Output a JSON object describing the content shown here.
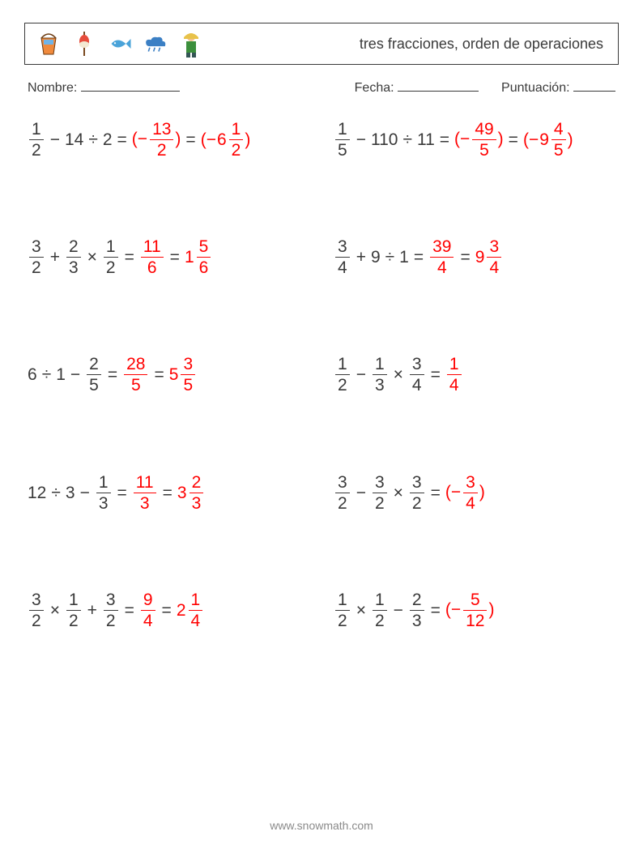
{
  "colors": {
    "text": "#3a3a3a",
    "answer": "#ff0000",
    "border": "#3a3a3a",
    "footer": "#8a8a8a",
    "background": "#ffffff"
  },
  "header": {
    "title": "tres fracciones, orden de operaciones",
    "icons": [
      "bucket-icon",
      "float-icon",
      "fish-icon",
      "cloud-icon",
      "fisherman-icon"
    ]
  },
  "meta": {
    "name_label": "Nombre:",
    "date_label": "Fecha:",
    "score_label": "Puntuación:",
    "name_underline_width": 122,
    "date_underline_width": 100,
    "score_underline_width": 52
  },
  "glyphs": {
    "minus": "−",
    "plus": "+",
    "times": "×",
    "divide": "÷",
    "equals": "="
  },
  "problems": [
    {
      "lhs": [
        {
          "frac": [
            "1",
            "2"
          ]
        },
        {
          "op": "minus"
        },
        {
          "int": "14"
        },
        {
          "op": "divide"
        },
        {
          "int": "2"
        }
      ],
      "answers": [
        {
          "paren": true,
          "neg": true,
          "frac": [
            "13",
            "2"
          ]
        },
        {
          "paren": true,
          "neg": true,
          "mixed": [
            "6",
            "1",
            "2"
          ]
        }
      ]
    },
    {
      "lhs": [
        {
          "frac": [
            "1",
            "5"
          ]
        },
        {
          "op": "minus"
        },
        {
          "int": "110"
        },
        {
          "op": "divide"
        },
        {
          "int": "11"
        }
      ],
      "answers": [
        {
          "paren": true,
          "neg": true,
          "frac": [
            "49",
            "5"
          ]
        },
        {
          "paren": true,
          "neg": true,
          "mixed": [
            "9",
            "4",
            "5"
          ]
        }
      ]
    },
    {
      "lhs": [
        {
          "frac": [
            "3",
            "2"
          ]
        },
        {
          "op": "plus"
        },
        {
          "frac": [
            "2",
            "3"
          ]
        },
        {
          "op": "times"
        },
        {
          "frac": [
            "1",
            "2"
          ]
        }
      ],
      "answers": [
        {
          "frac": [
            "11",
            "6"
          ]
        },
        {
          "mixed": [
            "1",
            "5",
            "6"
          ]
        }
      ]
    },
    {
      "lhs": [
        {
          "frac": [
            "3",
            "4"
          ]
        },
        {
          "op": "plus"
        },
        {
          "int": "9"
        },
        {
          "op": "divide"
        },
        {
          "int": "1"
        }
      ],
      "answers": [
        {
          "frac": [
            "39",
            "4"
          ]
        },
        {
          "mixed": [
            "9",
            "3",
            "4"
          ]
        }
      ]
    },
    {
      "lhs": [
        {
          "int": "6"
        },
        {
          "op": "divide"
        },
        {
          "int": "1"
        },
        {
          "op": "minus"
        },
        {
          "frac": [
            "2",
            "5"
          ]
        }
      ],
      "answers": [
        {
          "frac": [
            "28",
            "5"
          ]
        },
        {
          "mixed": [
            "5",
            "3",
            "5"
          ]
        }
      ]
    },
    {
      "lhs": [
        {
          "frac": [
            "1",
            "2"
          ]
        },
        {
          "op": "minus"
        },
        {
          "frac": [
            "1",
            "3"
          ]
        },
        {
          "op": "times"
        },
        {
          "frac": [
            "3",
            "4"
          ]
        }
      ],
      "answers": [
        {
          "frac": [
            "1",
            "4"
          ]
        }
      ]
    },
    {
      "lhs": [
        {
          "int": "12"
        },
        {
          "op": "divide"
        },
        {
          "int": "3"
        },
        {
          "op": "minus"
        },
        {
          "frac": [
            "1",
            "3"
          ]
        }
      ],
      "answers": [
        {
          "frac": [
            "11",
            "3"
          ]
        },
        {
          "mixed": [
            "3",
            "2",
            "3"
          ]
        }
      ]
    },
    {
      "lhs": [
        {
          "frac": [
            "3",
            "2"
          ]
        },
        {
          "op": "minus"
        },
        {
          "frac": [
            "3",
            "2"
          ]
        },
        {
          "op": "times"
        },
        {
          "frac": [
            "3",
            "2"
          ]
        }
      ],
      "answers": [
        {
          "paren": true,
          "neg": true,
          "frac": [
            "3",
            "4"
          ]
        }
      ]
    },
    {
      "lhs": [
        {
          "frac": [
            "3",
            "2"
          ]
        },
        {
          "op": "times"
        },
        {
          "frac": [
            "1",
            "2"
          ]
        },
        {
          "op": "plus"
        },
        {
          "frac": [
            "3",
            "2"
          ]
        }
      ],
      "answers": [
        {
          "frac": [
            "9",
            "4"
          ]
        },
        {
          "mixed": [
            "2",
            "1",
            "4"
          ]
        }
      ]
    },
    {
      "lhs": [
        {
          "frac": [
            "1",
            "2"
          ]
        },
        {
          "op": "times"
        },
        {
          "frac": [
            "1",
            "2"
          ]
        },
        {
          "op": "minus"
        },
        {
          "frac": [
            "2",
            "3"
          ]
        }
      ],
      "answers": [
        {
          "paren": true,
          "neg": true,
          "frac": [
            "5",
            "12"
          ]
        }
      ]
    }
  ],
  "footer": "www.snowmath.com"
}
